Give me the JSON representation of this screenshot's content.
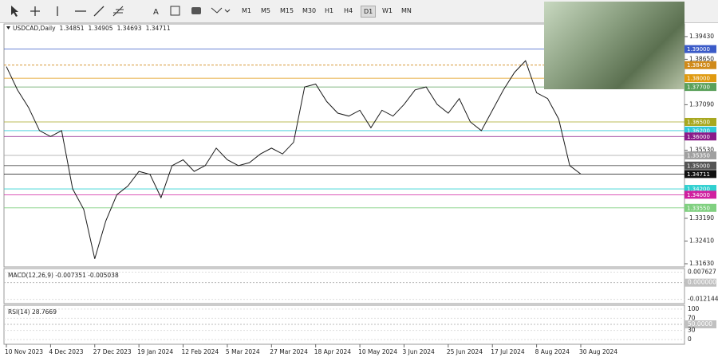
{
  "toolbar": {
    "timeframes": [
      "M1",
      "M5",
      "M15",
      "M30",
      "H1",
      "H4",
      "D1",
      "W1",
      "MN"
    ],
    "active": "D1"
  },
  "chart_data": {
    "type": "line",
    "title": "USDCAD,Daily",
    "header_values": [
      1.34851,
      1.34905,
      1.34693,
      1.34711
    ],
    "categories": [
      "10 Nov 2023",
      null,
      null,
      null,
      "4 Dec 2023",
      null,
      null,
      null,
      "27 Dec 2023",
      null,
      null,
      null,
      "19 Jan 2024",
      null,
      null,
      null,
      "12 Feb 2024",
      null,
      null,
      null,
      "5 Mar 2024",
      null,
      null,
      null,
      "27 Mar 2024",
      null,
      null,
      null,
      "18 Apr 2024",
      null,
      null,
      null,
      "10 May 2024",
      null,
      null,
      null,
      "3 Jun 2024",
      null,
      null,
      null,
      "25 Jun 2024",
      null,
      null,
      null,
      "17 Jul 2024",
      null,
      null,
      null,
      "8 Aug 2024",
      null,
      null,
      null,
      "30 Aug 2024"
    ],
    "series": [
      {
        "name": "USDCAD",
        "color": "#1a1a1a",
        "values": [
          1.384,
          1.376,
          1.37,
          1.362,
          1.36,
          1.362,
          1.342,
          1.335,
          1.318,
          1.331,
          1.34,
          1.343,
          1.348,
          1.347,
          1.339,
          1.35,
          1.352,
          1.348,
          1.35,
          1.356,
          1.352,
          1.35,
          1.351,
          1.354,
          1.356,
          1.354,
          1.358,
          1.377,
          1.378,
          1.372,
          1.368,
          1.367,
          1.369,
          1.363,
          1.369,
          1.367,
          1.371,
          1.376,
          1.377,
          1.371,
          1.368,
          1.373,
          1.365,
          1.362,
          1.369,
          1.376,
          1.382,
          1.386,
          1.375,
          1.373,
          1.366,
          1.35,
          1.34711
        ]
      }
    ],
    "ylim": [
      1.3152,
      1.3981
    ],
    "yticks": [
      {
        "value": 1.3943,
        "label": "1.39430"
      },
      {
        "value": 1.3865,
        "label": "1.38650"
      },
      {
        "value": 1.3709,
        "label": "1.37090"
      },
      {
        "value": 1.3553,
        "label": "1.35530"
      },
      {
        "value": 1.3319,
        "label": "1.33190"
      },
      {
        "value": 1.3241,
        "label": "1.32410"
      },
      {
        "value": 1.3163,
        "label": "1.31630"
      }
    ],
    "levels": [
      {
        "value": 1.39,
        "label": "1.39000",
        "color": "#3b5bc8"
      },
      {
        "value": 1.3845,
        "label": "1.38450",
        "color": "#d08a1a"
      },
      {
        "value": 1.38,
        "label": "1.38000",
        "color": "#e09a10"
      },
      {
        "value": 1.377,
        "label": "1.37700",
        "color": "#5aa05a"
      },
      {
        "value": 1.365,
        "label": "1.36500",
        "color": "#a8a820"
      },
      {
        "value": 1.362,
        "label": "1.36200",
        "color": "#30c8d8"
      },
      {
        "value": 1.36,
        "label": "1.36000",
        "color": "#8a1a8a"
      },
      {
        "value": 1.3535,
        "label": "1.35350",
        "color": "#a0a0a0"
      },
      {
        "value": 1.35,
        "label": "1.35000",
        "color": "#555555"
      },
      {
        "value": 1.34711,
        "label": "1.34711",
        "color": "#111111"
      },
      {
        "value": 1.342,
        "label": "1.34200",
        "color": "#30d0d0"
      },
      {
        "value": 1.34,
        "label": "1.34000",
        "color": "#d020a0"
      },
      {
        "value": 1.3355,
        "label": "1.33550",
        "color": "#80d080"
      }
    ],
    "macd": {
      "label": "MACD(12,26,9) -0.007351 -0.005038",
      "ylim": [
        -0.0135,
        0.0085
      ],
      "yticks": [
        0.007627,
        {
          "value": 0,
          "label": "0.000000"
        },
        -0.012144
      ]
    },
    "rsi": {
      "label": "RSI(14) 28.7669",
      "ylim": [
        -5,
        105
      ],
      "yticks": [
        100,
        70,
        {
          "value": 50,
          "label": "50.0000"
        },
        30,
        0
      ]
    }
  }
}
